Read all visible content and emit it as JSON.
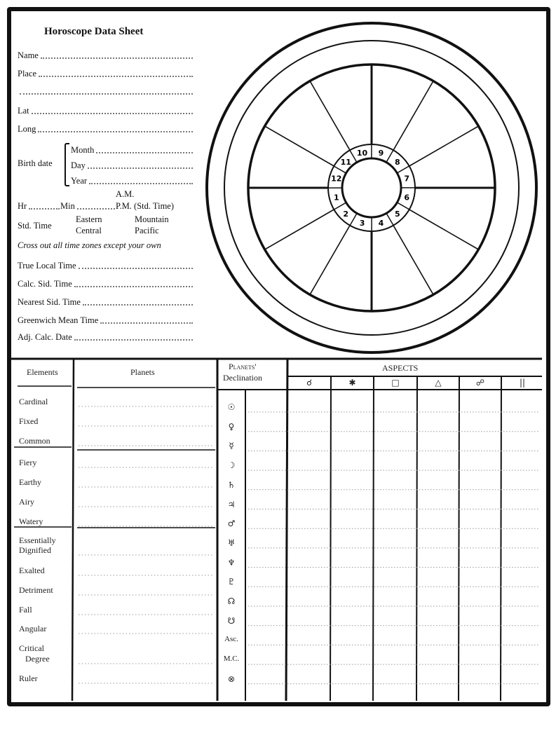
{
  "title": "Horoscope Data Sheet",
  "fields": {
    "name": "Name",
    "place": "Place",
    "lat": "Lat",
    "long": "Long",
    "birth_date": "Birth date",
    "month": "Month",
    "day": "Day",
    "year": "Year",
    "am": "A.M.",
    "hr": "Hr",
    "min": "Min",
    "pm": "P.M. (Std. Time)",
    "std_time": "Std. Time",
    "eastern": "Eastern",
    "central": "Central",
    "mountain": "Mountain",
    "pacific": "Pacific",
    "cross_out": "Cross out all time zones except your own",
    "true_local_time": "True Local Time",
    "calc_sid_time": "Calc. Sid. Time",
    "nearest_sid_time": "Nearest Sid. Time",
    "gmt": "Greenwich Mean Time",
    "adj_calc_date": "Adj. Calc. Date"
  },
  "wheel": {
    "houses": [
      "1",
      "2",
      "3",
      "4",
      "5",
      "6",
      "7",
      "8",
      "9",
      "10",
      "11",
      "12"
    ]
  },
  "table": {
    "elements_header": "Elements",
    "planets_header": "Planets",
    "declination_header_1": "Planets'",
    "declination_header_2": "Declination",
    "aspects_header": "ASPECTS",
    "aspects": [
      "☌",
      "✱",
      "□",
      "△",
      "☍",
      "||"
    ],
    "elements": [
      "Cardinal",
      "Fixed",
      "Common",
      "Fiery",
      "Earthy",
      "Airy",
      "Watery",
      "Essentially",
      "Dignified",
      "Exalted",
      "Detriment",
      "Fall",
      "Angular",
      "Critical",
      "Degree",
      "Ruler"
    ],
    "symbols": [
      "☉",
      "♀",
      "☿",
      "☽",
      "♄",
      "♃",
      "♂",
      "♅",
      "♆",
      "♇",
      "☊",
      "☋",
      "Asc.",
      "M.C.",
      "⊗"
    ]
  }
}
